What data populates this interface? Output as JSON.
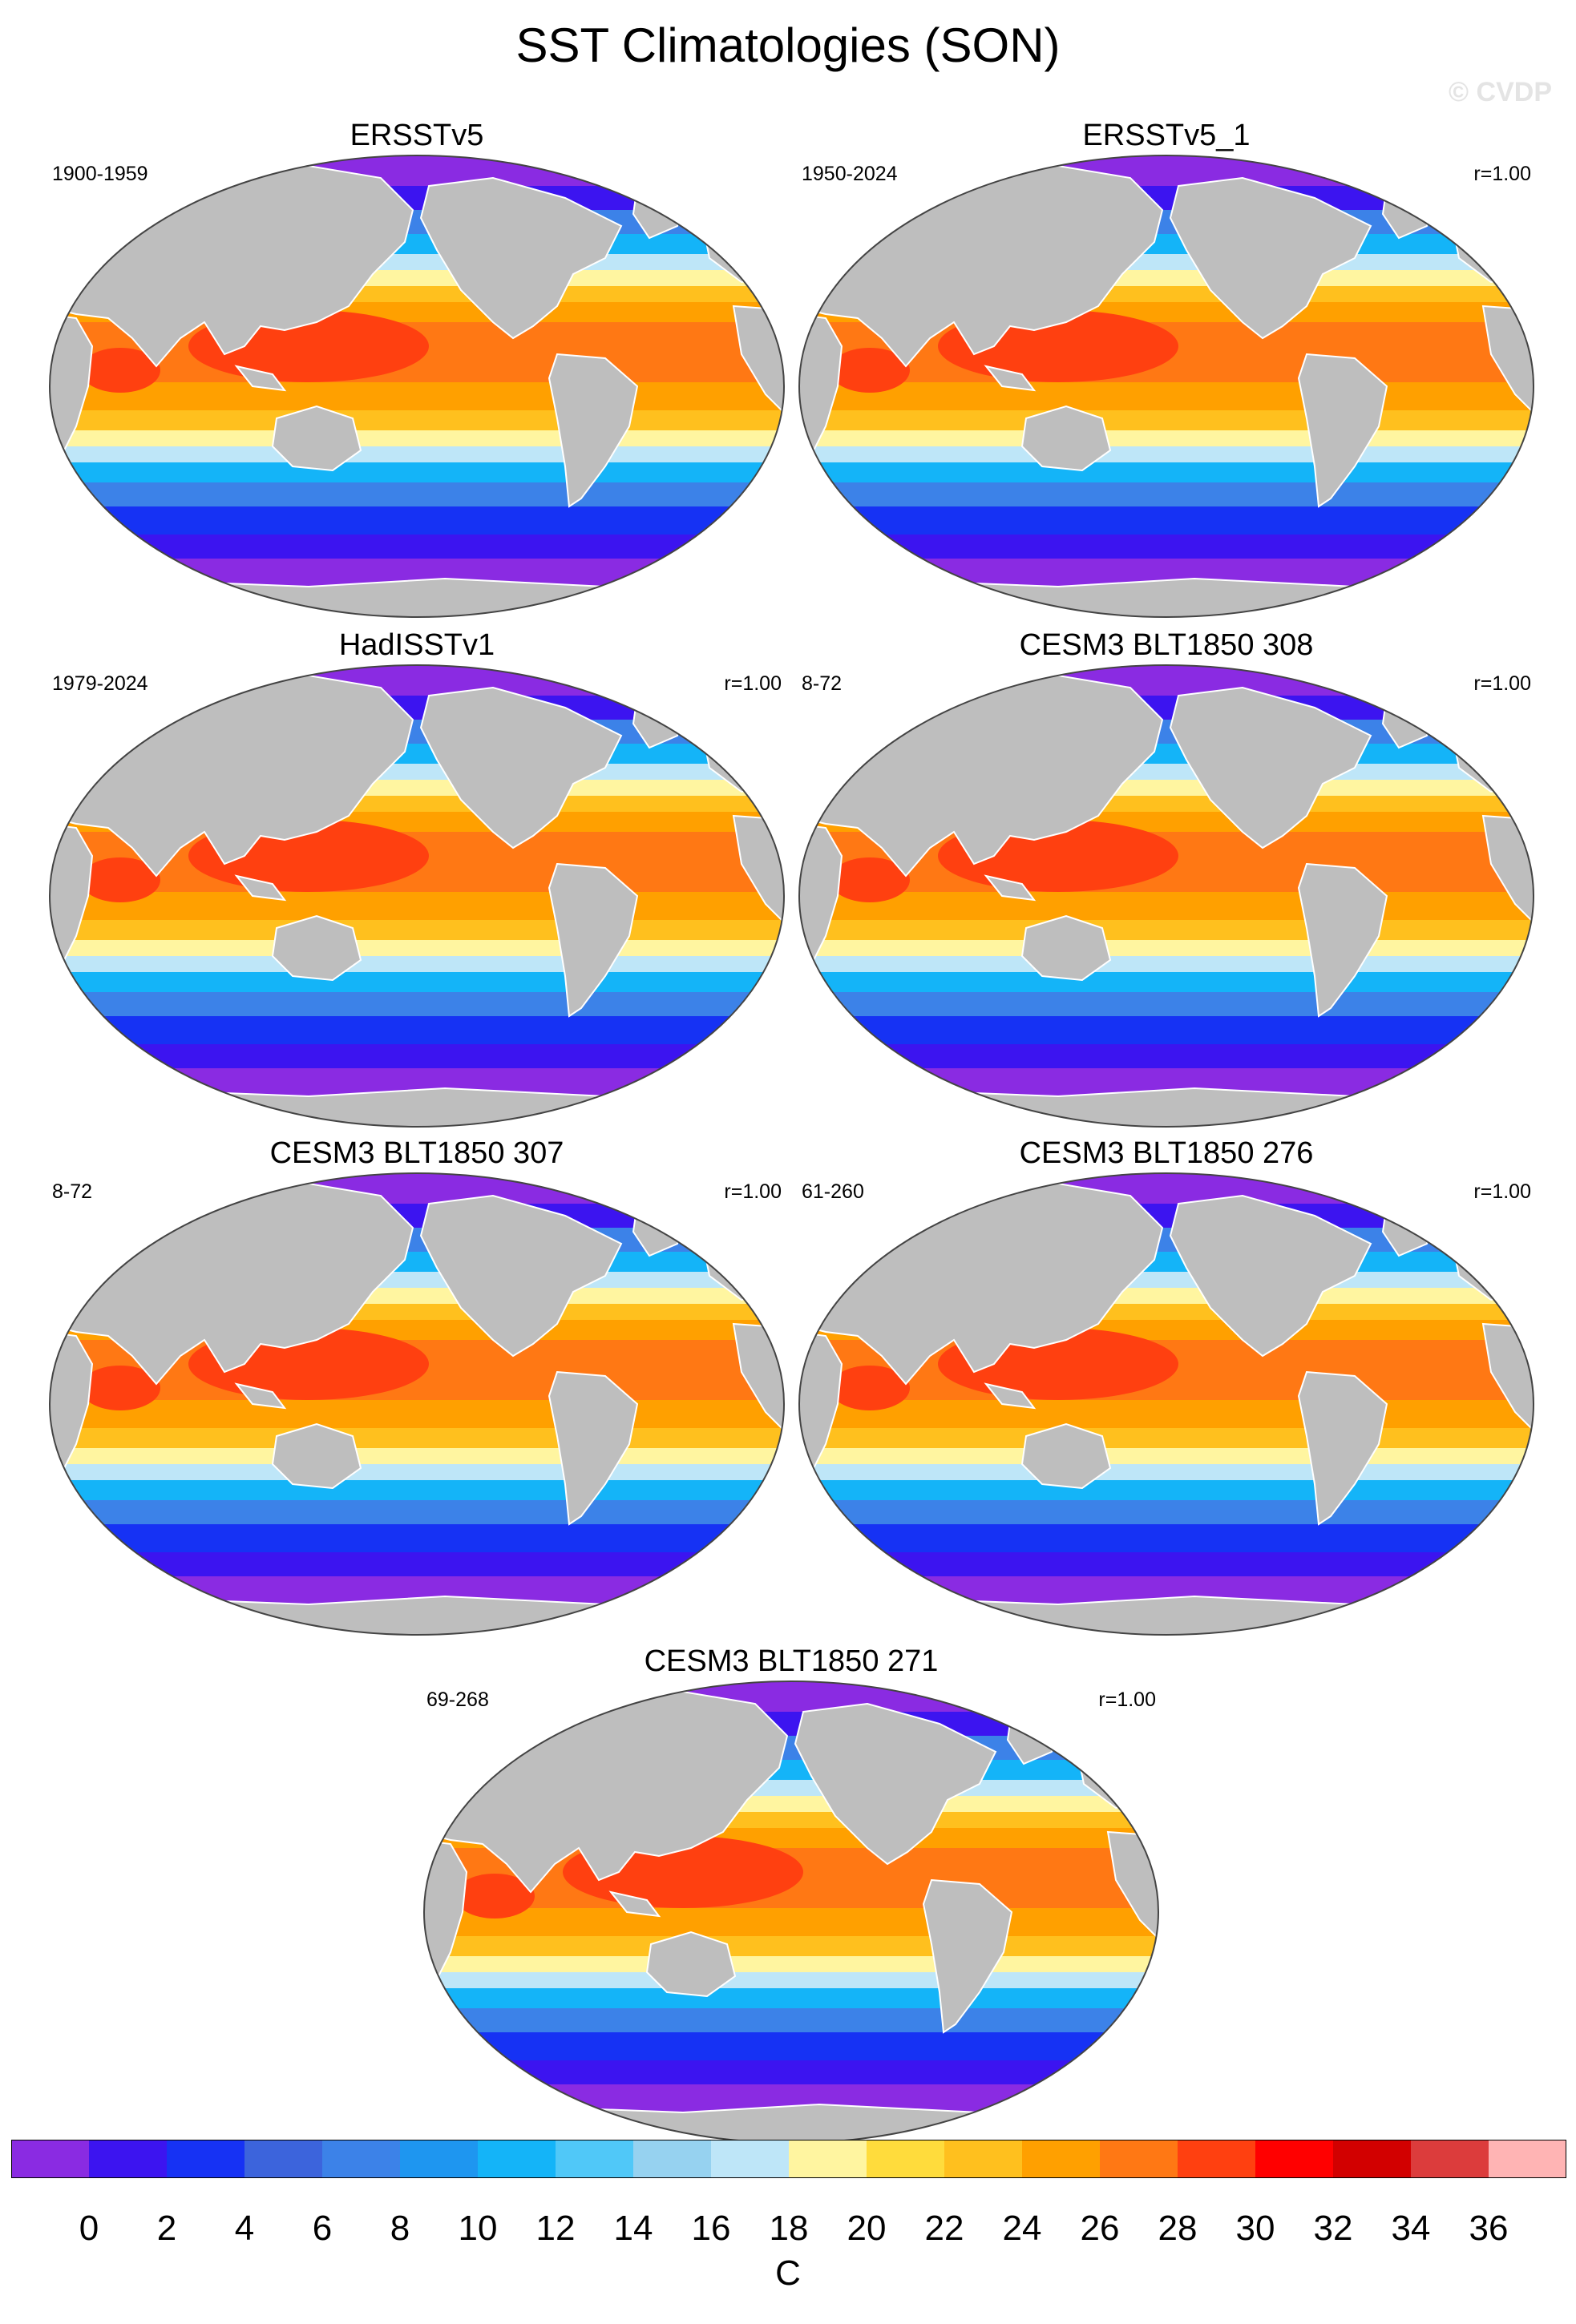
{
  "title": "SST Climatologies (SON)",
  "watermark": "© CVDP",
  "panels": [
    {
      "name": "ERSSTv5",
      "period": "1900-1959",
      "corr": ""
    },
    {
      "name": "ERSSTv5_1",
      "period": "1950-2024",
      "corr": "r=1.00"
    },
    {
      "name": "HadISSTv1",
      "period": "1979-2024",
      "corr": "r=1.00"
    },
    {
      "name": "CESM3 BLT1850 308",
      "period": "8-72",
      "corr": "r=1.00"
    },
    {
      "name": "CESM3 BLT1850 307",
      "period": "8-72",
      "corr": "r=1.00"
    },
    {
      "name": "CESM3 BLT1850 276",
      "period": "61-260",
      "corr": "r=1.00"
    },
    {
      "name": "CESM3 BLT1850 271",
      "period": "69-268",
      "corr": "r=1.00"
    }
  ],
  "colorbar": {
    "unit": "C",
    "tick_labels": [
      "0",
      "2",
      "4",
      "6",
      "8",
      "10",
      "12",
      "14",
      "16",
      "18",
      "20",
      "22",
      "24",
      "26",
      "28",
      "30",
      "32",
      "34",
      "36"
    ],
    "colors": [
      "#8a2be2",
      "#3c14f0",
      "#1632f4",
      "#3c64dc",
      "#3c82e8",
      "#1e96f0",
      "#14b4f8",
      "#50c8f8",
      "#96d2f0",
      "#bee6f8",
      "#fff5a0",
      "#ffdc3c",
      "#ffc01e",
      "#ffa000",
      "#ff7814",
      "#ff4010",
      "#ff0000",
      "#d20000",
      "#dc3c3c",
      "#ffb4b4"
    ]
  },
  "map_colors": {
    "land": "#bebebe",
    "polar": "#8a2be2",
    "deep_blue": "#3c14f0",
    "blue": "#1632f4",
    "mid_blue": "#3c82e8",
    "light_blue": "#14b4f8",
    "pale_blue": "#bee6f8",
    "yellow": "#fff5a0",
    "gold": "#ffc01e",
    "orange": "#ffa000",
    "dark_orange": "#ff7814",
    "red": "#ff4010"
  }
}
